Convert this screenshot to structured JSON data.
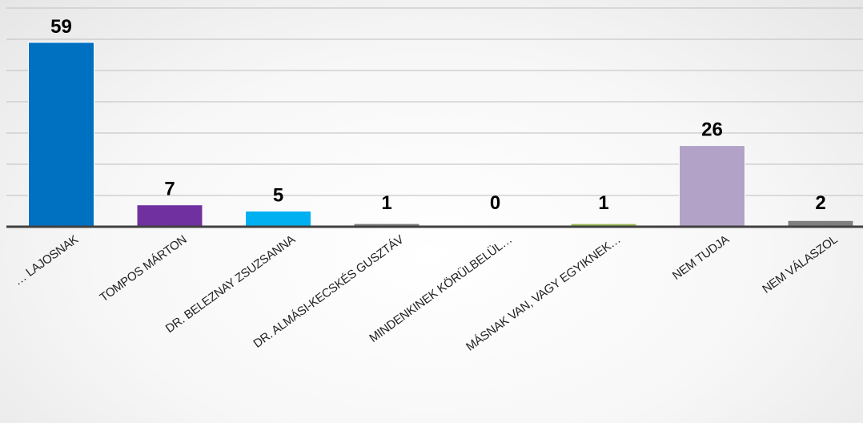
{
  "chart_data": {
    "type": "bar",
    "categories": [
      "… LAJOSNAK",
      "TOMPOS MÁRTON",
      "DR. BELEZNAY ZSUZSANNA",
      "DR. ALMÁSI-KECSKÉS GUSZTÁV",
      "MINDENKINEK KÖRÜLBELÜL…",
      "MÁSNAK VAN, VAGY EGYIKNEK…",
      "NEM TUDJA",
      "NEM VÁLASZOL"
    ],
    "values": [
      59,
      7,
      5,
      1,
      0,
      1,
      26,
      2
    ],
    "value_labels": [
      "59",
      "7",
      "5",
      "1",
      "0",
      "1",
      "26",
      "2"
    ],
    "colors": [
      "#0070C0",
      "#7030A0",
      "#00B0F0",
      "#808080",
      "#808080",
      "#9BBB59",
      "#B3A2C7",
      "#7F7F7F"
    ],
    "ylim": [
      0,
      70
    ],
    "grid": true,
    "legend": "none"
  }
}
